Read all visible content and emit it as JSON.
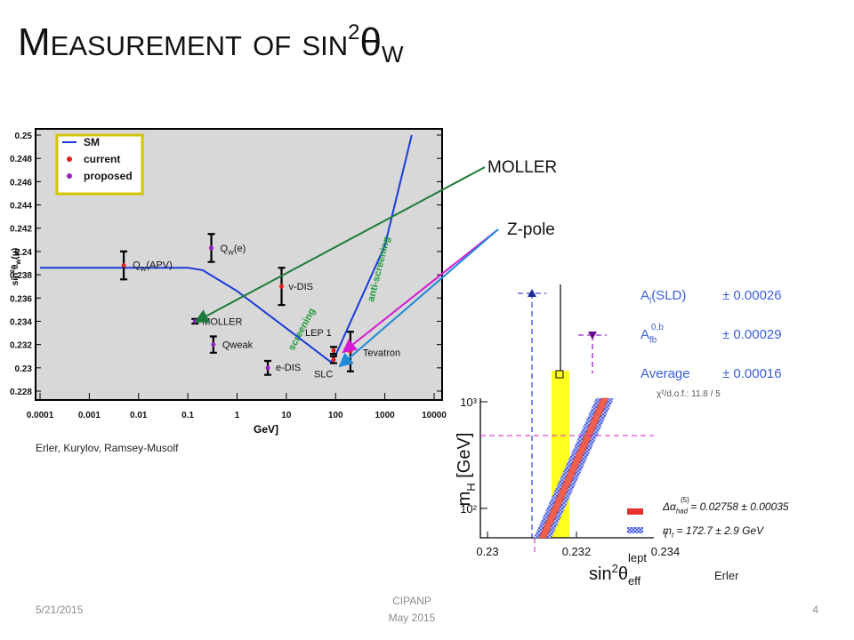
{
  "title": {
    "main": "Measurement of sin",
    "sup": "2",
    "symbol": "θ",
    "sub": "W"
  },
  "callouts": {
    "moller": "MOLLER",
    "zpole": "Z-pole"
  },
  "left_plot": {
    "type": "scatter",
    "x_scale": "log",
    "xlim": [
      0.0001,
      10000
    ],
    "ylim": [
      0.228,
      0.25
    ],
    "xticks": [
      0.0001,
      0.001,
      0.01,
      0.1,
      1,
      10,
      100,
      1000,
      10000
    ],
    "yticks": [
      0.228,
      0.23,
      0.232,
      0.234,
      0.236,
      0.238,
      0.24,
      0.242,
      0.244,
      0.246,
      0.248,
      0.25
    ],
    "y_label": {
      "main": "sin",
      "sup": "2",
      "rest": "θ",
      "sub": "W",
      "tail": "(μ)"
    },
    "x_label": "GeV]",
    "legend": [
      {
        "name": "SM",
        "color": "#1a3ad8"
      },
      {
        "name": "current",
        "color": "#e02020"
      },
      {
        "name": "proposed",
        "color": "#9a1fc4"
      }
    ],
    "sm_curve": {
      "color": "#1a3ad8",
      "x": [
        0.0001,
        0.1,
        0.2,
        1,
        10,
        80,
        100,
        1000,
        3500
      ],
      "y": [
        0.2386,
        0.2386,
        0.2384,
        0.2366,
        0.2334,
        0.2305,
        0.2311,
        0.2405,
        0.25
      ]
    },
    "points": [
      {
        "label": "Q",
        "label_sub": "W",
        "label_rest": "(APV)",
        "x": 0.005,
        "y": 0.2388,
        "err": 0.0012,
        "kind": "current"
      },
      {
        "label": "Q",
        "label_sub": "W",
        "label_rest": "(e)",
        "x": 0.3,
        "y": 0.2403,
        "err": 0.0012,
        "kind": "proposed"
      },
      {
        "label": "ν-DIS",
        "x": 8,
        "y": 0.237,
        "err": 0.0016,
        "kind": "current"
      },
      {
        "label": "MOLLER",
        "x": 0.14,
        "y": 0.234,
        "err": 0.0002,
        "kind": "proposed"
      },
      {
        "label": "Qweak",
        "x": 0.33,
        "y": 0.232,
        "err": 0.0007,
        "kind": "proposed"
      },
      {
        "label": "e-DIS",
        "x": 4.2,
        "y": 0.23,
        "err": 0.0006,
        "kind": "proposed"
      },
      {
        "label": "LEP 1",
        "x": 91,
        "y": 0.2315,
        "err": 0.0003,
        "kind": "current"
      },
      {
        "label": "SLC",
        "x": 91,
        "y": 0.2307,
        "err": 0.0003,
        "kind": "current"
      },
      {
        "label": "Tevatron",
        "x": 200,
        "y": 0.2314,
        "err": 0.0017,
        "kind": "current"
      }
    ],
    "annotations": [
      "screening",
      "anti-screening"
    ],
    "credit": "Erler, Kurylov, Ramsey-Musolf"
  },
  "right_plot": {
    "type": "band",
    "measurements": [
      {
        "label": "A",
        "label_sub": "l",
        "label_rest": "(SLD)",
        "error": "± 0.00026"
      },
      {
        "label": "A",
        "label_sup": "0,b",
        "label_sub": "fb",
        "error": "± 0.00029"
      },
      {
        "label": "Average",
        "error": "± 0.00016"
      }
    ],
    "chi2": "χ²/d.o.f.: 11.8 / 5",
    "y_label": {
      "main": "m",
      "sub": "H",
      "rest": " [GeV]"
    },
    "y_scale": "log",
    "ylim": [
      53,
      1080
    ],
    "yticks": [
      {
        "value": 1000,
        "label": "10³"
      },
      {
        "value": 100,
        "label": "10²"
      }
    ],
    "xlim": [
      0.2295,
      0.2345
    ],
    "xticks": [
      0.23,
      0.232,
      0.234
    ],
    "x_label": {
      "main": "sin",
      "sup": "2",
      "rest": "θ",
      "sub": "eff",
      "sup2": "lept"
    },
    "legend": [
      {
        "main": "Δα",
        "sub": "had",
        "sup": "(5)",
        "rest": " = 0.02758 ± 0.00035",
        "color": "#e83030"
      },
      {
        "main": "m",
        "sub": "t",
        "rest": " = 172.7 ± 2.9 GeV",
        "color": "#3a4fe0"
      }
    ],
    "credit": "Erler"
  },
  "footer": {
    "date": "5/21/2015",
    "event": "CIPANP",
    "month": "May 2015",
    "page": "4"
  }
}
